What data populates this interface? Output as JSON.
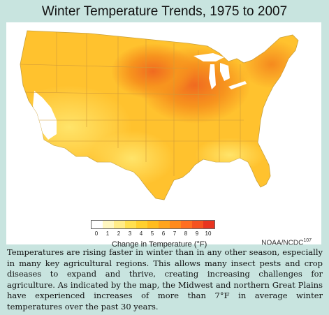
{
  "title": "Winter Temperature Trends, 1975 to 2007",
  "legend": {
    "title": "Change in Temperature (°F)",
    "ticks": [
      "0",
      "1",
      "2",
      "3",
      "4",
      "5",
      "6",
      "7",
      "8",
      "9",
      "10"
    ],
    "colors": [
      "#ffffff",
      "#fff7c0",
      "#ffec88",
      "#ffe050",
      "#ffd02e",
      "#ffbc1e",
      "#ffa41c",
      "#ff8a1c",
      "#ff6e20",
      "#f55220",
      "#e83420"
    ]
  },
  "source": "NOAA/NCDC",
  "source_ref": "107",
  "caption": "Temperatures are rising faster in winter than in any other season, especially in many key agricultural regions. This allows many insect pests and crop diseases to expand and thrive, creating increasing challenges for agriculture. As indicated by the map, the Midwest and northern Great Plains have experienced increases of more than 7°F in average winter temperatures over the past 30 years."
}
